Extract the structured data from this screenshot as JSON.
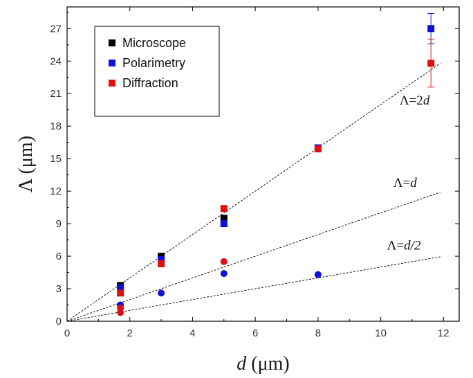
{
  "chart_data": {
    "type": "scatter",
    "xlabel": {
      "italic": "d",
      "rest": " (μm)"
    },
    "ylabel": "Λ (μm)",
    "xlim": [
      0,
      12.5
    ],
    "ylim": [
      0,
      29
    ],
    "x_ticks": [
      0,
      2,
      4,
      6,
      8,
      10,
      12
    ],
    "y_ticks": [
      0,
      3,
      6,
      9,
      12,
      15,
      18,
      21,
      24,
      27
    ],
    "grid": false,
    "legend": {
      "position": "top-left",
      "entries": [
        {
          "label": "Microscope",
          "color": "#000000"
        },
        {
          "label": "Polarimetry",
          "color": "#1010d8"
        },
        {
          "label": "Diffraction",
          "color": "#e01010"
        }
      ]
    },
    "reference_lines": [
      {
        "slope": 2,
        "x_end": 11.9,
        "label_main": "Λ=2",
        "label_italic": "d",
        "label_suffix": "",
        "label_at": [
          10.6,
          20.0
        ]
      },
      {
        "slope": 1,
        "x_end": 11.9,
        "label_main": "Λ=",
        "label_italic": "d",
        "label_suffix": "",
        "label_at": [
          10.4,
          12.4
        ]
      },
      {
        "slope": 0.5,
        "x_end": 11.9,
        "label_main": "Λ=",
        "label_italic": "d",
        "label_suffix": "/2",
        "label_at": [
          10.2,
          6.6
        ]
      }
    ],
    "series": [
      {
        "name": "Microscope",
        "marker": "square",
        "color": "#000000",
        "points": [
          {
            "x": 1.7,
            "y": 3.3
          },
          {
            "x": 3.0,
            "y": 6.0
          },
          {
            "x": 5.0,
            "y": 9.5
          }
        ]
      },
      {
        "name": "Polarimetry",
        "marker": "square",
        "color": "#1010d8",
        "points": [
          {
            "x": 1.7,
            "y": 3.1
          },
          {
            "x": 3.0,
            "y": 5.7
          },
          {
            "x": 5.0,
            "y": 9.0
          },
          {
            "x": 8.0,
            "y": 16.0
          },
          {
            "x": 11.6,
            "y": 27.0,
            "err_low": 25.6,
            "err_high": 28.4
          }
        ]
      },
      {
        "name": "Diffraction",
        "marker": "square",
        "color": "#e01010",
        "points": [
          {
            "x": 1.7,
            "y": 2.6
          },
          {
            "x": 3.0,
            "y": 5.3
          },
          {
            "x": 5.0,
            "y": 10.4
          },
          {
            "x": 8.0,
            "y": 15.9
          },
          {
            "x": 11.6,
            "y": 23.8,
            "err_low": 21.6,
            "err_high": 26.0
          }
        ]
      },
      {
        "name": "",
        "marker": "circle",
        "color": "#1010d8",
        "points": [
          {
            "x": 1.7,
            "y": 1.5
          },
          {
            "x": 3.0,
            "y": 2.6
          },
          {
            "x": 5.0,
            "y": 4.4
          },
          {
            "x": 8.0,
            "y": 4.3
          }
        ]
      },
      {
        "name": "",
        "marker": "circle",
        "color": "#e01010",
        "points": [
          {
            "x": 1.7,
            "y": 1.2
          },
          {
            "x": 1.7,
            "y": 0.8
          },
          {
            "x": 5.0,
            "y": 5.5
          }
        ]
      }
    ]
  }
}
